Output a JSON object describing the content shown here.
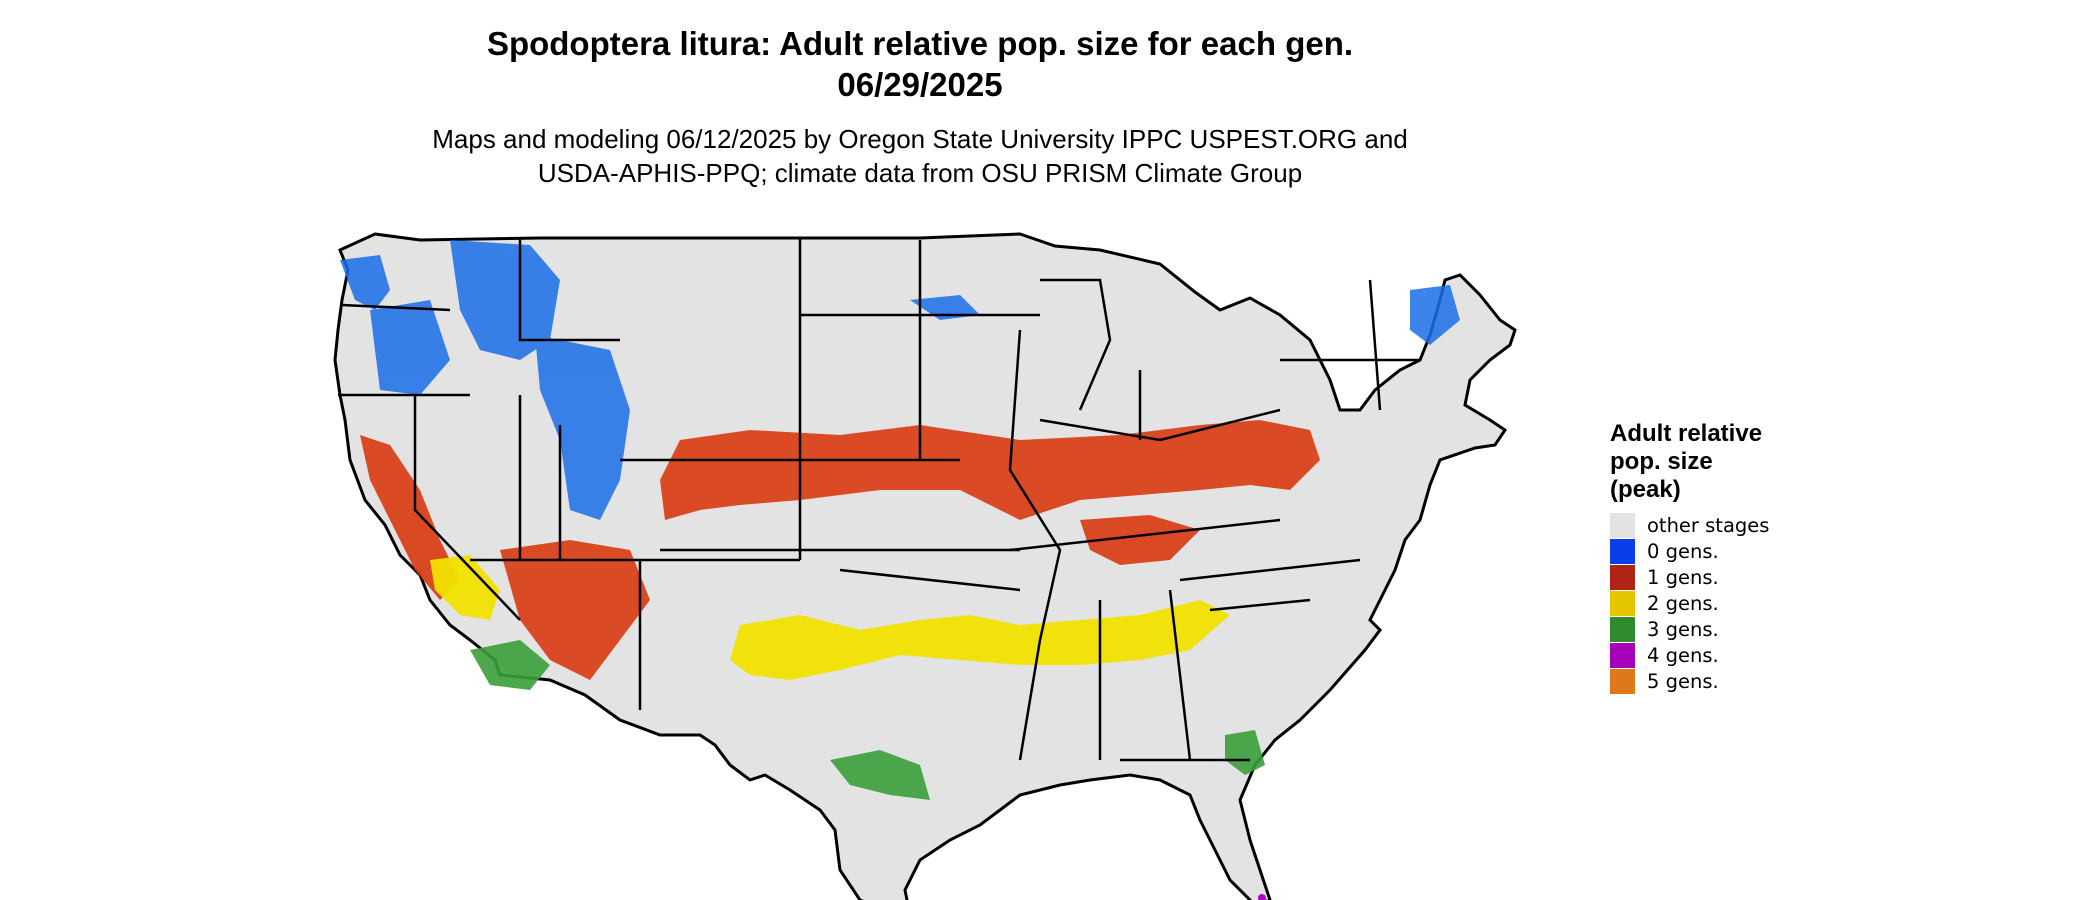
{
  "map": {
    "title_line1": "Spodoptera litura: Adult relative pop. size for each gen.",
    "title_line2": "06/29/2025",
    "subtitle_line1": "Maps and modeling 06/12/2025 by Oregon State University IPPC USPEST.ORG and",
    "subtitle_line2": "USDA-APHIS-PPQ; climate data from OSU PRISM Climate Group",
    "region": "Contiguous United States",
    "base_color": "#e3e3e3",
    "border_color": "#000000"
  },
  "legend": {
    "title_lines": [
      "Adult relative",
      "pop. size",
      "(peak)"
    ],
    "items": [
      {
        "label": "other stages",
        "color": "#e3e3e3"
      },
      {
        "label": "0 gens.",
        "color": "#0a3ee8"
      },
      {
        "label": "1 gens.",
        "color": "#b02418"
      },
      {
        "label": "2 gens.",
        "color": "#e6c600"
      },
      {
        "label": "3 gens.",
        "color": "#2e8b2e"
      },
      {
        "label": "4 gens.",
        "color": "#a600b8"
      },
      {
        "label": "5 gens.",
        "color": "#e0781a"
      }
    ]
  }
}
